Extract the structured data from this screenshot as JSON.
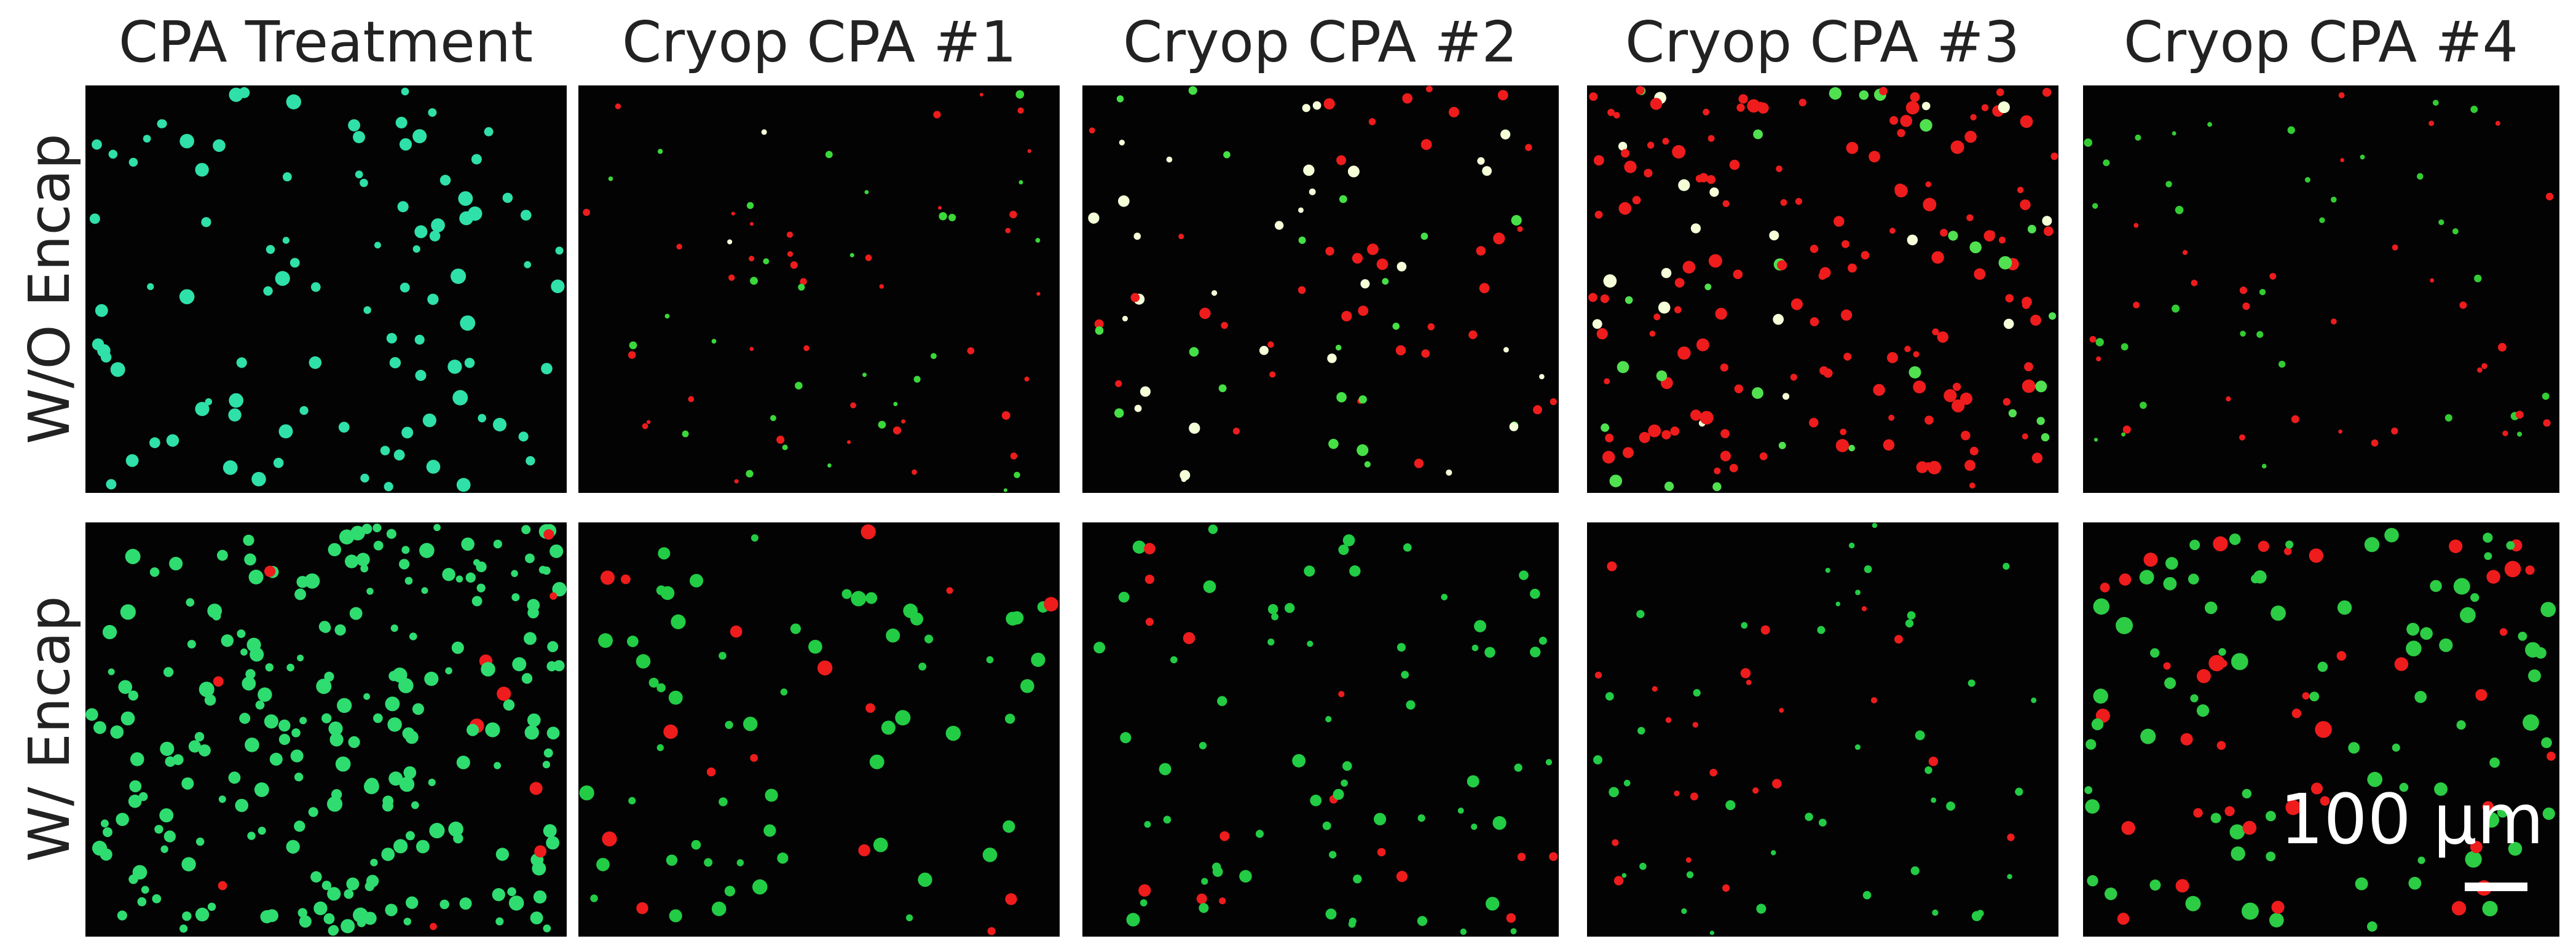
{
  "column_headers": [
    "CPA Treatment",
    "Cryop CPA #1",
    "Cryop CPA #2",
    "Cryop CPA #3",
    "Cryop CPA #4"
  ],
  "row_labels": [
    "W/O Encap",
    "W/ Encap"
  ],
  "scale_bar": {
    "label": "100 µm"
  }
}
